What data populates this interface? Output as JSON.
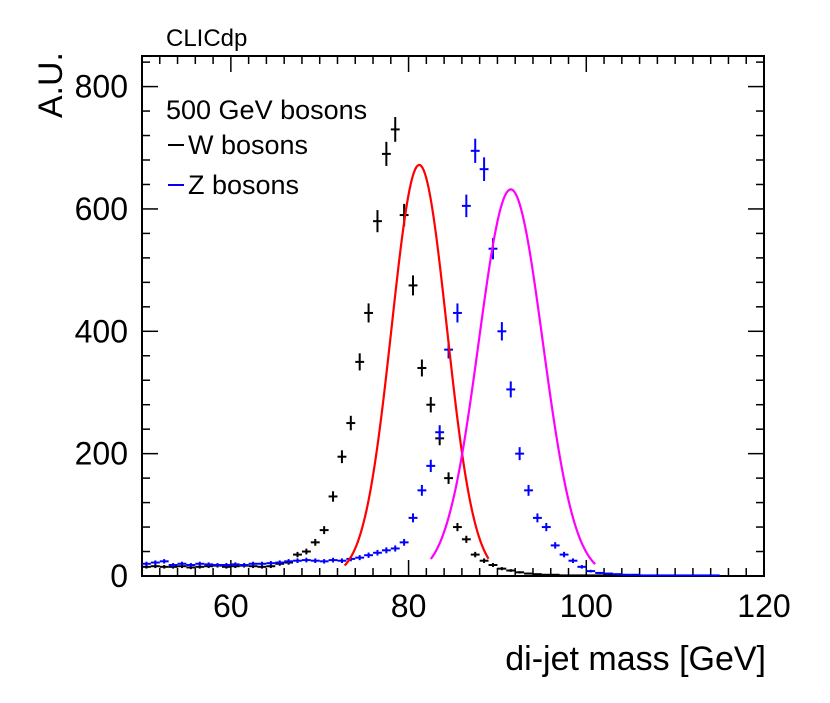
{
  "chart_data": {
    "type": "scatter",
    "top_label": "CLICdp",
    "xlabel": "di-jet mass [GeV]",
    "ylabel": "A.U.",
    "xlim": [
      50,
      120
    ],
    "ylim": [
      0,
      850
    ],
    "xticks": [
      60,
      80,
      100,
      120
    ],
    "yticks": [
      0,
      200,
      400,
      600,
      800
    ],
    "legend": {
      "position": "top-left",
      "title": "500 GeV bosons",
      "entries": [
        {
          "label": "W bosons",
          "series": "W"
        },
        {
          "label": "Z bosons",
          "series": "Z"
        }
      ]
    },
    "colors": {
      "W_points": "#000000",
      "Z_points": "#0000ff",
      "W_fit": "#ff0000",
      "Z_fit": "#ff00ff"
    },
    "series": [
      {
        "name": "W bosons",
        "key": "W",
        "bin_width": 1.0,
        "x": [
          50.5,
          51.5,
          52.5,
          53.5,
          54.5,
          55.5,
          56.5,
          57.5,
          58.5,
          59.5,
          60.5,
          61.5,
          62.5,
          63.5,
          64.5,
          65.5,
          66.5,
          67.5,
          68.5,
          69.5,
          70.5,
          71.5,
          72.5,
          73.5,
          74.5,
          75.5,
          76.5,
          77.5,
          78.5,
          79.5,
          80.5,
          81.5,
          82.5,
          83.5,
          84.5,
          85.5,
          86.5,
          87.5,
          88.5,
          89.5,
          90.5,
          91.5,
          92.5,
          93.5,
          94.5,
          95.5,
          96.5,
          97.5,
          98.5,
          99.5,
          100.5,
          101.5,
          102.5,
          103.5,
          104.5,
          105.5,
          106.5,
          107.5,
          108.5,
          109.5,
          110.5,
          111.5,
          112.5,
          113.5,
          114.5,
          115.5,
          116.5,
          117.5,
          118.5,
          119.5
        ],
        "y": [
          15,
          16,
          15,
          15,
          16,
          14,
          15,
          16,
          17,
          15,
          16,
          17,
          16,
          15,
          16,
          20,
          22,
          35,
          40,
          55,
          75,
          130,
          195,
          250,
          350,
          430,
          580,
          690,
          730,
          590,
          475,
          340,
          280,
          225,
          160,
          80,
          60,
          35,
          25,
          18,
          12,
          9,
          6,
          4,
          3,
          2,
          2,
          1,
          1,
          1,
          1,
          1,
          1,
          1,
          0,
          0,
          0,
          0,
          0,
          0,
          0,
          0,
          0,
          0,
          0,
          0,
          0,
          0,
          0,
          0
        ],
        "fit": {
          "mean": 81.2,
          "sigma": 3.1,
          "amplitude": 672,
          "range": [
            72.8,
            89.0
          ]
        }
      },
      {
        "name": "Z bosons",
        "key": "Z",
        "bin_width": 1.0,
        "x": [
          50.5,
          51.5,
          52.5,
          53.5,
          54.5,
          55.5,
          56.5,
          57.5,
          58.5,
          59.5,
          60.5,
          61.5,
          62.5,
          63.5,
          64.5,
          65.5,
          66.5,
          67.5,
          68.5,
          69.5,
          70.5,
          71.5,
          72.5,
          73.5,
          74.5,
          75.5,
          76.5,
          77.5,
          78.5,
          79.5,
          80.5,
          81.5,
          82.5,
          83.5,
          84.5,
          85.5,
          86.5,
          87.5,
          88.5,
          89.5,
          90.5,
          91.5,
          92.5,
          93.5,
          94.5,
          95.5,
          96.5,
          97.5,
          98.5,
          99.5,
          100.5,
          101.5,
          102.5,
          103.5,
          104.5,
          105.5,
          106.5,
          107.5,
          108.5,
          109.5,
          110.5,
          111.5,
          112.5,
          113.5,
          114.5,
          115.5,
          116.5,
          117.5,
          118.5,
          119.5
        ],
        "y": [
          20,
          22,
          24,
          18,
          20,
          18,
          20,
          19,
          18,
          18,
          19,
          18,
          20,
          20,
          21,
          22,
          24,
          25,
          26,
          25,
          24,
          26,
          25,
          28,
          30,
          34,
          38,
          42,
          45,
          55,
          95,
          140,
          180,
          235,
          370,
          430,
          605,
          695,
          665,
          535,
          400,
          305,
          200,
          140,
          95,
          80,
          50,
          35,
          25,
          15,
          8,
          5,
          4,
          3,
          2,
          2,
          1,
          1,
          1,
          1,
          1,
          1,
          1,
          1,
          1,
          0,
          0,
          0,
          0,
          0
        ],
        "fit": {
          "mean": 91.5,
          "sigma": 3.6,
          "amplitude": 632,
          "range": [
            82.5,
            101.0
          ]
        }
      }
    ]
  }
}
